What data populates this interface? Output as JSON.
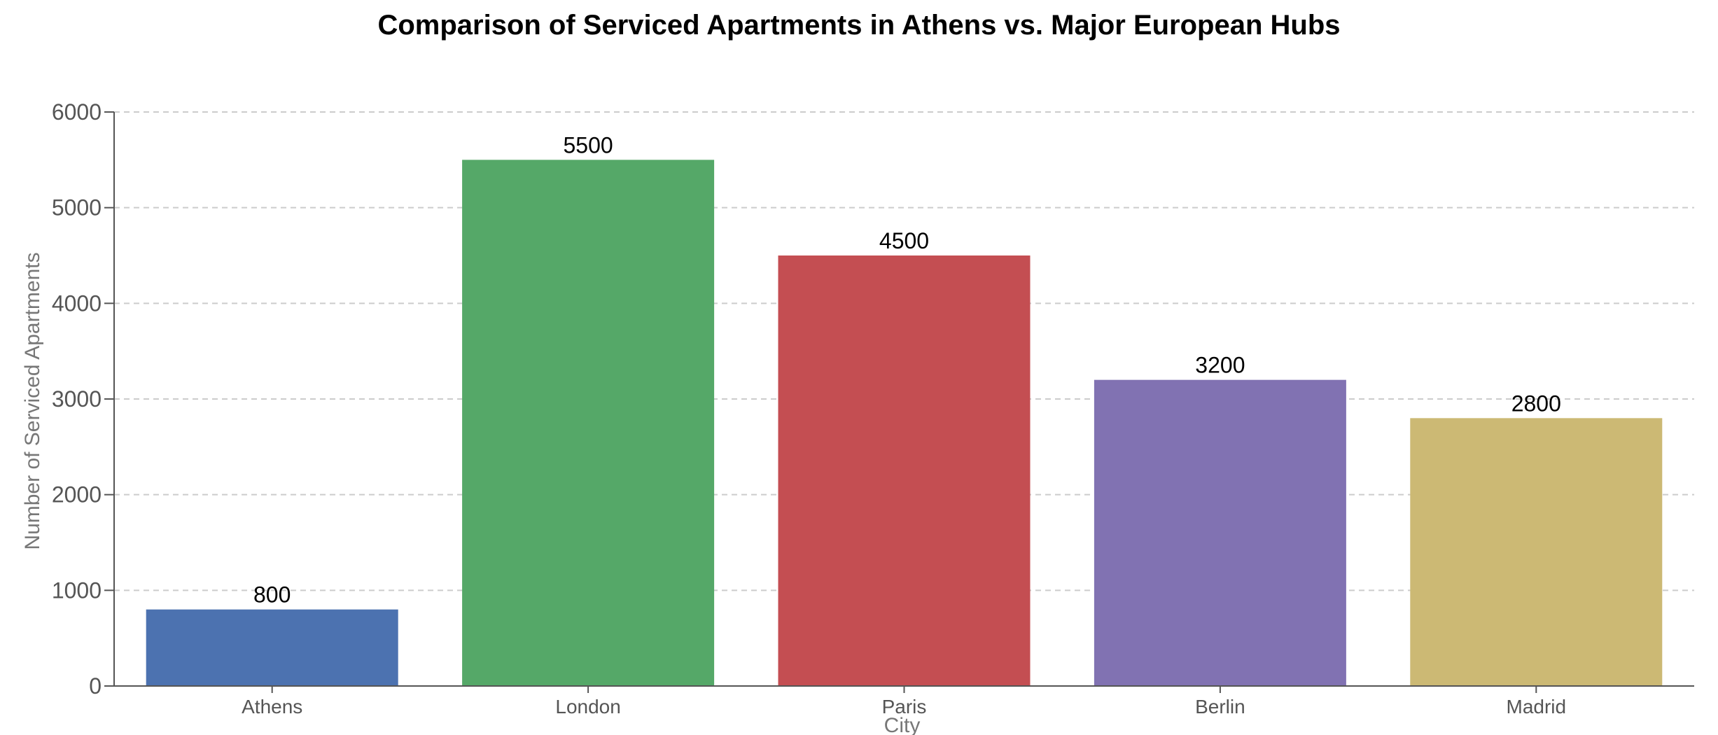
{
  "chart_data": {
    "type": "bar",
    "title": "Comparison of Serviced Apartments in Athens vs. Major European Hubs",
    "xlabel": "City",
    "ylabel": "Number of Serviced Apartments",
    "categories": [
      "Athens",
      "London",
      "Paris",
      "Berlin",
      "Madrid"
    ],
    "values": [
      800,
      5500,
      4500,
      3200,
      2800
    ],
    "data_labels": [
      "800",
      "5500",
      "4500",
      "3200",
      "2800"
    ],
    "colors": [
      "#4c72b0",
      "#55a868",
      "#c44e52",
      "#8172b2",
      "#ccb974"
    ],
    "ylim": [
      0,
      6000
    ],
    "yticks": [
      0,
      1000,
      2000,
      3000,
      4000,
      5000,
      6000
    ],
    "ytick_labels": [
      "0",
      "1000",
      "2000",
      "3000",
      "4000",
      "5000",
      "6000"
    ],
    "grid": true,
    "grid_axis": "y",
    "legend": "none"
  }
}
